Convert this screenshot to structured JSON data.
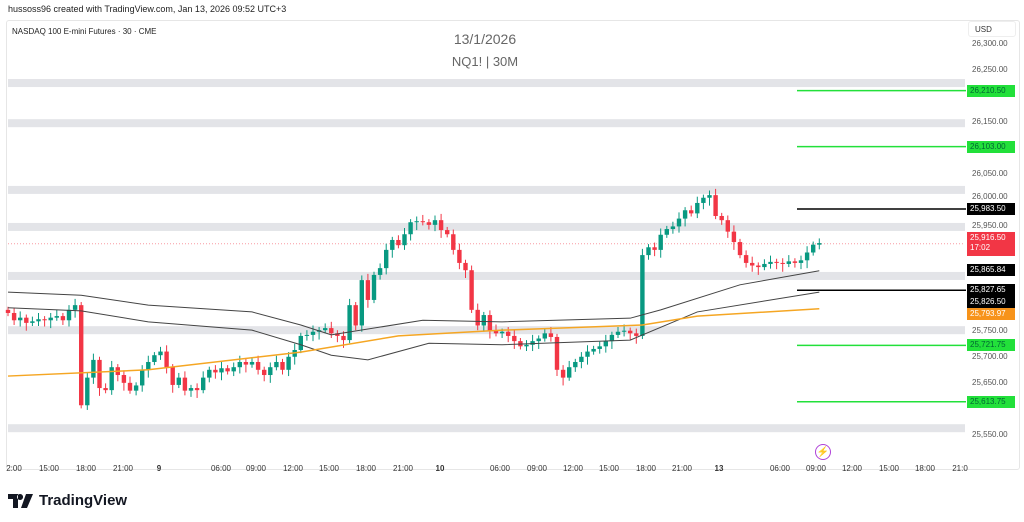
{
  "header": {
    "credit": "hussoss96 created with TradingView.com, Jan 13, 2026 09:52 UTC+3",
    "symbol": "NASDAQ 100 E-mini Futures · 30 · CME",
    "title_date": "13/1/2026",
    "title_symbol": "NQ1! | 30M",
    "currency": "USD"
  },
  "price_axis": [
    "26,300.00",
    "26,250.00",
    "26,150.00",
    "26,050.00",
    "26,000.00",
    "25,950.00",
    "25,750.00",
    "25,700.00",
    "25,650.00",
    "25,550.00"
  ],
  "price_axis_values": [
    26300,
    26250,
    26150,
    26050,
    26000,
    25950,
    25750,
    25700,
    25650,
    25550
  ],
  "time_axis": [
    "2:00",
    "15:00",
    "18:00",
    "21:00",
    "9",
    "06:00",
    "09:00",
    "12:00",
    "15:00",
    "18:00",
    "21:00",
    "10",
    "06:00",
    "09:00",
    "12:00",
    "15:00",
    "18:00",
    "21:00",
    "13",
    "06:00",
    "09:00",
    "12:00",
    "15:00",
    "18:00",
    "21:0"
  ],
  "level_tags": [
    {
      "label": "26,210.50",
      "price": 26210.5,
      "color": "#22e03a",
      "line": true
    },
    {
      "label": "26,103.00",
      "price": 26103,
      "color": "#22e03a",
      "line": true
    },
    {
      "label": "25,983.50",
      "price": 25983.5,
      "color": "#000000",
      "line": true
    },
    {
      "label": "25,865.84",
      "price": 25865.84,
      "color": "#000000",
      "line": false
    },
    {
      "label": "25,827.65",
      "price": 25827.65,
      "color": "#000000",
      "line": true
    },
    {
      "label": "25,826.50",
      "price": 25826.5,
      "color": "#000000",
      "line": false
    },
    {
      "label": "25,793.97",
      "price": 25793.97,
      "color": "#f7931a",
      "line": false
    },
    {
      "label": "25,721.75",
      "price": 25721.75,
      "color": "#22e03a",
      "line": true
    },
    {
      "label": "25,613.75",
      "price": 25613.75,
      "color": "#22e03a",
      "line": true
    }
  ],
  "current": {
    "price_label": "25,916.50",
    "countdown": "17:02",
    "price": 25916.5,
    "color": "#f23645"
  },
  "brand": {
    "name": "TradingView"
  },
  "icons": {
    "alert": "lightning-icon"
  },
  "chart_data": {
    "type": "candlestick",
    "title": "NQ1! | 30M",
    "ylim": [
      25530,
      26320
    ],
    "zones": [
      26225,
      26148,
      26020,
      25949,
      25855,
      25751,
      25563
    ],
    "first_open": 25790,
    "closes": [
      25784,
      25770,
      25775,
      25765,
      25768,
      25772,
      25770,
      25775,
      25778,
      25770,
      25790,
      25799,
      25607,
      25660,
      25694,
      25640,
      25636,
      25680,
      25665,
      25650,
      25635,
      25645,
      25675,
      25690,
      25703,
      25710,
      25680,
      25646,
      25660,
      25635,
      25640,
      25636,
      25660,
      25675,
      25670,
      25678,
      25672,
      25680,
      25690,
      25685,
      25690,
      25675,
      25665,
      25680,
      25690,
      25675,
      25700,
      25713,
      25740,
      25742,
      25748,
      25751,
      25755,
      25745,
      25740,
      25732,
      25799,
      25760,
      25847,
      25809,
      25857,
      25870,
      25905,
      25924,
      25914,
      25935,
      25958,
      25960,
      25958,
      25953,
      25962,
      25943,
      25935,
      25905,
      25880,
      25866,
      25790,
      25760,
      25780,
      25750,
      25745,
      25748,
      25740,
      25730,
      25720,
      25723,
      25730,
      25735,
      25745,
      25738,
      25675,
      25660,
      25680,
      25690,
      25700,
      25710,
      25715,
      25720,
      25730,
      25742,
      25748,
      25750,
      25745,
      25740,
      25895,
      25910,
      25905,
      25934,
      25945,
      25950,
      25965,
      25981,
      25975,
      25995,
      26005,
      26010,
      25970,
      25962,
      25940,
      25920,
      25895,
      25880,
      25875,
      25872,
      25878,
      25882,
      25880,
      25878,
      25883,
      25880,
      25885,
      25900,
      25915,
      25918
    ],
    "series": [
      {
        "name": "upper-band",
        "color": "#444444",
        "points": [
          [
            0,
            25824
          ],
          [
            12,
            25818
          ],
          [
            23,
            25799
          ],
          [
            40,
            25786
          ],
          [
            48,
            25761
          ],
          [
            53,
            25742
          ],
          [
            68,
            25770
          ],
          [
            81,
            25767
          ],
          [
            102,
            25774
          ],
          [
            107,
            25790
          ],
          [
            120,
            25838
          ],
          [
            133,
            25865
          ]
        ]
      },
      {
        "name": "lower-band",
        "color": "#444444",
        "points": [
          [
            0,
            25794
          ],
          [
            12,
            25788
          ],
          [
            23,
            25767
          ],
          [
            40,
            25751
          ],
          [
            48,
            25723
          ],
          [
            53,
            25703
          ],
          [
            59,
            25694
          ],
          [
            69,
            25726
          ],
          [
            81,
            25723
          ],
          [
            102,
            25732
          ],
          [
            113,
            25786
          ],
          [
            133,
            25824
          ]
        ]
      },
      {
        "name": "moving-average",
        "color": "#f5a623",
        "points": [
          [
            0,
            25663
          ],
          [
            23,
            25675
          ],
          [
            48,
            25709
          ],
          [
            64,
            25740
          ],
          [
            81,
            25751
          ],
          [
            104,
            25761
          ],
          [
            113,
            25778
          ],
          [
            133,
            25792
          ]
        ]
      }
    ]
  }
}
